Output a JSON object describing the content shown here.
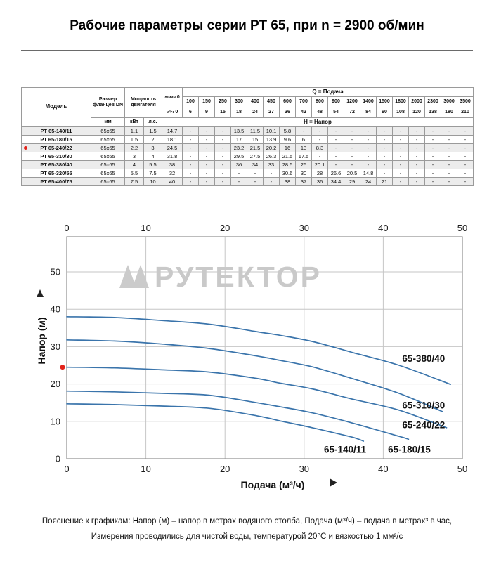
{
  "title": "Рабочие параметры серии РТ 65, при n = 2900 об/мин",
  "table": {
    "header": {
      "model": "Модель",
      "flange": "Размер фланцев DN",
      "flange_unit": "мм",
      "power": "Мощность двигателя",
      "power_kw": "кВт",
      "power_hp": "л.с.",
      "lmin_unit": "л/мин",
      "m3h_unit": "м³/ч",
      "zero": "0",
      "q_title": "Q = Подача",
      "h_title": "Н = Напор",
      "flow_lmin": [
        "100",
        "150",
        "250",
        "300",
        "400",
        "450",
        "600",
        "700",
        "800",
        "900",
        "1200",
        "1400",
        "1500",
        "1800",
        "2000",
        "2300",
        "3000",
        "3500"
      ],
      "flow_m3h": [
        "6",
        "9",
        "15",
        "18",
        "24",
        "27",
        "36",
        "42",
        "48",
        "54",
        "72",
        "84",
        "90",
        "108",
        "120",
        "138",
        "180",
        "210"
      ]
    },
    "rows": [
      {
        "model": "РТ 65-140/11",
        "flange": "65х65",
        "kw": "1.1",
        "hp": "1.5",
        "h0": "14.7",
        "marked": false,
        "values": [
          "-",
          "-",
          "-",
          "13.5",
          "11.5",
          "10.1",
          "5.8",
          "-",
          "-",
          "-",
          "-",
          "-",
          "-",
          "-",
          "-",
          "-",
          "-",
          "-"
        ]
      },
      {
        "model": "РТ 65-180/15",
        "flange": "65х65",
        "kw": "1.5",
        "hp": "2",
        "h0": "18.1",
        "marked": false,
        "values": [
          "-",
          "-",
          "-",
          "17",
          "15",
          "13.9",
          "9.6",
          "6",
          "-",
          "-",
          "-",
          "-",
          "-",
          "-",
          "-",
          "-",
          "-",
          "-"
        ]
      },
      {
        "model": "РТ 65-240/22",
        "flange": "65х65",
        "kw": "2.2",
        "hp": "3",
        "h0": "24.5",
        "marked": true,
        "values": [
          "-",
          "-",
          "-",
          "23.2",
          "21.5",
          "20.2",
          "16",
          "13",
          "8.3",
          "-",
          "-",
          "-",
          "-",
          "-",
          "-",
          "-",
          "-",
          "-"
        ]
      },
      {
        "model": "РТ 65-310/30",
        "flange": "65х65",
        "kw": "3",
        "hp": "4",
        "h0": "31.8",
        "marked": false,
        "values": [
          "-",
          "-",
          "-",
          "29.5",
          "27.5",
          "26.3",
          "21.5",
          "17.5",
          "-",
          "-",
          "-",
          "-",
          "-",
          "-",
          "-",
          "-",
          "-",
          "-"
        ]
      },
      {
        "model": "РТ 65-380/40",
        "flange": "65х65",
        "kw": "4",
        "hp": "5.5",
        "h0": "38",
        "marked": false,
        "values": [
          "-",
          "-",
          "-",
          "36",
          "34",
          "33",
          "28.5",
          "25",
          "20.1",
          "-",
          "-",
          "-",
          "-",
          "-",
          "-",
          "-",
          "-",
          "-"
        ]
      },
      {
        "model": "РТ 65-320/55",
        "flange": "65х65",
        "kw": "5.5",
        "hp": "7.5",
        "h0": "32",
        "marked": false,
        "values": [
          "-",
          "-",
          "-",
          "-",
          "-",
          "-",
          "30.6",
          "30",
          "28",
          "26.6",
          "20.5",
          "14.8",
          "-",
          "-",
          "-",
          "-",
          "-",
          "-"
        ]
      },
      {
        "model": "РТ 65-400/75",
        "flange": "65х65",
        "kw": "7.5",
        "hp": "10",
        "h0": "40",
        "marked": false,
        "values": [
          "-",
          "-",
          "-",
          "-",
          "-",
          "-",
          "38",
          "37",
          "36",
          "34.4",
          "29",
          "24",
          "21",
          "-",
          "-",
          "-",
          "-",
          "-"
        ]
      }
    ]
  },
  "chart_data": {
    "type": "line",
    "xlabel": "Подача (м³/ч)",
    "ylabel": "Напор (м)",
    "xlim": [
      0,
      50
    ],
    "ylim": [
      0,
      59
    ],
    "xticks": [
      0,
      10,
      20,
      30,
      40,
      50
    ],
    "yticks": [
      0,
      10,
      20,
      30,
      40,
      50
    ],
    "grid": true,
    "legend_position": "inline-labels",
    "watermark": "РУТЕКТОР",
    "line_color": "#3a74ab",
    "selected_point": {
      "x": 0,
      "y": 24.5,
      "color": "#e2231a"
    },
    "series": [
      {
        "name": "65-140/11",
        "label_pos": [
          32.5,
          1.6
        ],
        "points": [
          [
            0,
            14.7
          ],
          [
            6,
            14.5
          ],
          [
            12,
            14.1
          ],
          [
            18,
            13.5
          ],
          [
            24,
            11.5
          ],
          [
            27,
            10.1
          ],
          [
            31,
            8.3
          ],
          [
            36,
            5.8
          ],
          [
            37.5,
            4.7
          ]
        ]
      },
      {
        "name": "65-180/15",
        "label_pos": [
          40.6,
          1.6
        ],
        "points": [
          [
            0,
            18.1
          ],
          [
            6,
            17.9
          ],
          [
            12,
            17.5
          ],
          [
            18,
            17
          ],
          [
            24,
            15
          ],
          [
            27,
            13.9
          ],
          [
            31,
            12.3
          ],
          [
            36,
            9.6
          ],
          [
            42,
            6
          ],
          [
            43.2,
            5.2
          ]
        ]
      },
      {
        "name": "65-240/22",
        "label_pos": [
          42.4,
          8.2
        ],
        "points": [
          [
            0,
            24.5
          ],
          [
            6,
            24.3
          ],
          [
            12,
            23.8
          ],
          [
            18,
            23.2
          ],
          [
            24,
            21.5
          ],
          [
            27,
            20.2
          ],
          [
            31,
            18.7
          ],
          [
            36,
            16
          ],
          [
            42,
            13
          ],
          [
            48,
            8.3
          ]
        ]
      },
      {
        "name": "65-310/30",
        "label_pos": [
          42.4,
          13.4
        ],
        "points": [
          [
            0,
            31.8
          ],
          [
            6,
            31.5
          ],
          [
            12,
            30.7
          ],
          [
            18,
            29.5
          ],
          [
            24,
            27.5
          ],
          [
            27,
            26.3
          ],
          [
            31,
            24.6
          ],
          [
            36,
            21.5
          ],
          [
            42,
            17.5
          ],
          [
            47.5,
            12.6
          ]
        ]
      },
      {
        "name": "65-380/40",
        "label_pos": [
          42.4,
          25.9
        ],
        "points": [
          [
            0,
            38
          ],
          [
            6,
            37.8
          ],
          [
            12,
            37
          ],
          [
            18,
            36
          ],
          [
            24,
            34
          ],
          [
            27,
            33
          ],
          [
            31,
            31.4
          ],
          [
            36,
            28.5
          ],
          [
            42,
            25
          ],
          [
            48.5,
            19.9
          ]
        ]
      }
    ]
  },
  "footer": {
    "line1": "Пояснение к графикам: Напор (м) – напор в метрах водяного столба, Подача (м³/ч) – подача в метрах³ в час,",
    "line2": "Измерения проводились для чистой воды, температурой 20°C и вязкостью 1 мм²/с"
  }
}
